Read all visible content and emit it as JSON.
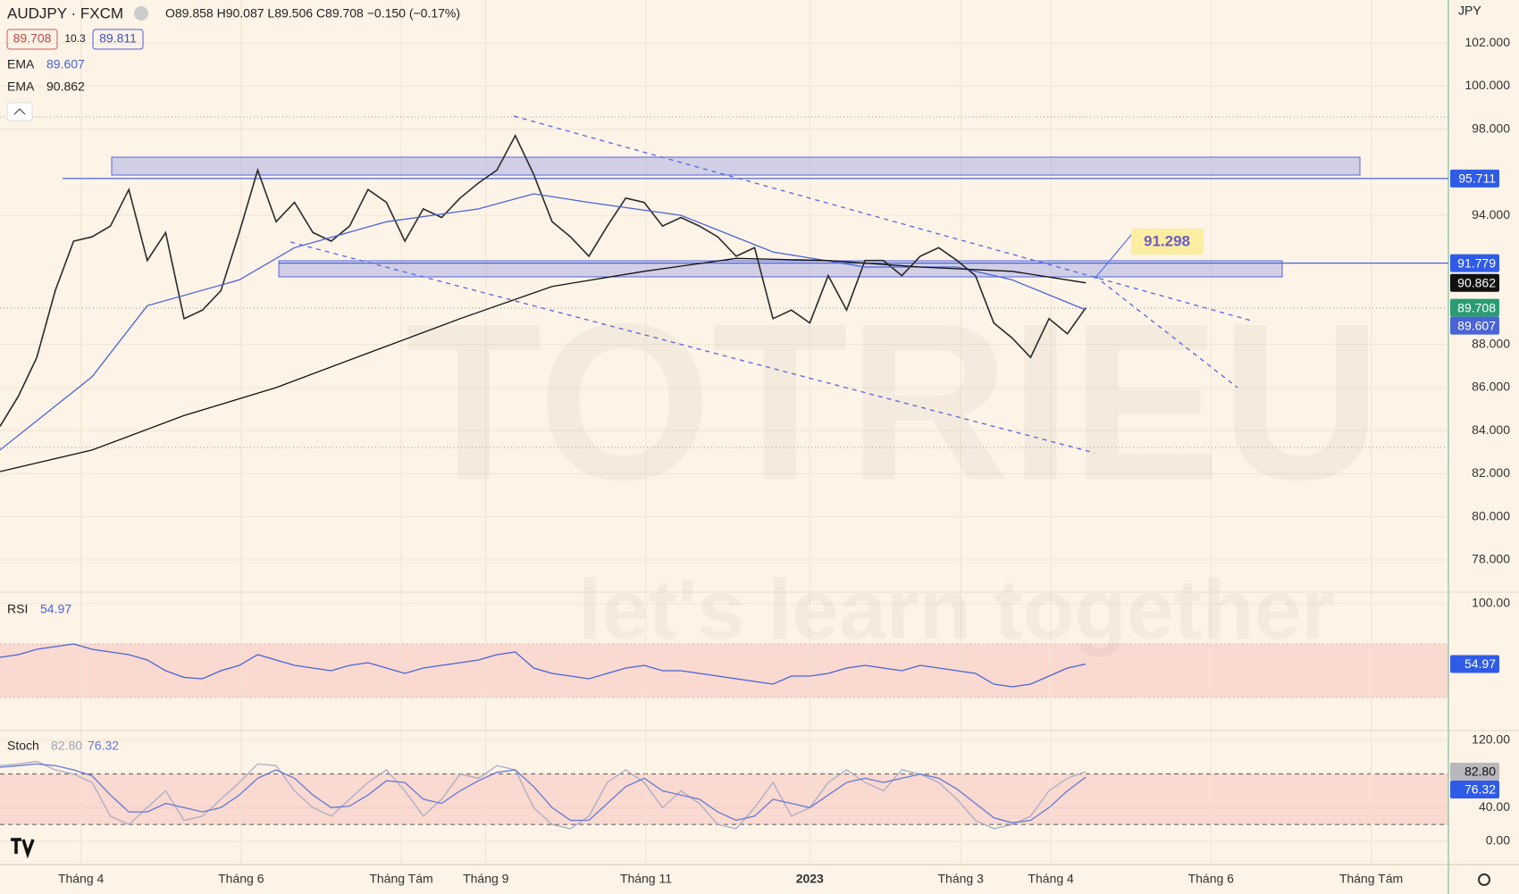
{
  "header": {
    "symbol": "AUDJPY · FXCM",
    "ohlc": "O89.858 H90.087 L89.506 C89.708 −0.150 (−0.17%)",
    "bid": 89.708,
    "spread": 10.3,
    "ask": 89.811,
    "currency": "JPY"
  },
  "watermark": {
    "brand": "TOTRIEU",
    "slogan": "let's learn together"
  },
  "chart_data": [
    {
      "type": "line",
      "xlim": [
        0,
        78.7
      ],
      "ylim": [
        76.5,
        104
      ],
      "yticks": [
        {
          "value": 102,
          "label": "102.000"
        },
        {
          "value": 100,
          "label": "100.000"
        },
        {
          "value": 98,
          "label": "98.000"
        },
        {
          "value": 94,
          "label": "94.000"
        },
        {
          "value": 88,
          "label": "88.000"
        },
        {
          "value": 86,
          "label": "86.000"
        },
        {
          "value": 84,
          "label": "84.000"
        },
        {
          "value": 82,
          "label": "82.000"
        },
        {
          "value": 80,
          "label": "80.000"
        },
        {
          "value": 78,
          "label": "78.000"
        }
      ],
      "grid": true,
      "levels": [
        95.711,
        91.779
      ],
      "annotation": 91.298,
      "series": [
        {
          "color": "#2a2a2a",
          "x": [
            0,
            1,
            2,
            3,
            4,
            5,
            6,
            7,
            8,
            9,
            10,
            11,
            12,
            13,
            14,
            15,
            16,
            17,
            18,
            19,
            20,
            21,
            22,
            23,
            24,
            25,
            26,
            27,
            28,
            29,
            30,
            31,
            32,
            33,
            34,
            35,
            36,
            37,
            38,
            39,
            40,
            41,
            42,
            43,
            44,
            45,
            46,
            47,
            48,
            49,
            50,
            51,
            52,
            53,
            54,
            55,
            56,
            57,
            58,
            59
          ],
          "values": [
            84.2,
            85.6,
            87.4,
            90.5,
            92.8,
            93.0,
            93.5,
            95.2,
            91.9,
            93.2,
            89.2,
            89.6,
            90.5,
            93.2,
            96.1,
            93.7,
            94.6,
            93.2,
            92.8,
            93.5,
            95.2,
            94.6,
            92.8,
            94.3,
            93.9,
            94.8,
            95.5,
            96.1,
            97.7,
            95.9,
            93.7,
            93.0,
            92.1,
            93.5,
            94.8,
            94.6,
            93.5,
            93.9,
            93.5,
            93.0,
            92.1,
            92.5,
            89.2,
            89.6,
            89.0,
            91.2,
            89.6,
            91.9,
            91.9,
            91.2,
            92.1,
            92.5,
            91.9,
            91.2,
            89.0,
            88.3,
            87.4,
            89.2,
            88.5,
            89.708
          ]
        },
        {
          "name": "EMA",
          "color": "#4a63d6",
          "x": [
            0,
            5,
            8,
            13,
            16,
            21,
            26,
            29,
            32,
            37,
            42,
            47,
            52,
            55,
            59
          ],
          "values": [
            83.1,
            86.5,
            89.8,
            91.0,
            92.5,
            93.7,
            94.3,
            95.0,
            94.6,
            94.0,
            92.3,
            91.6,
            91.6,
            91.0,
            89.607
          ]
        },
        {
          "name": "EMA",
          "color": "#111111",
          "x": [
            0,
            5,
            10,
            15,
            20,
            25,
            30,
            35,
            40,
            45,
            50,
            55,
            59
          ],
          "values": [
            82.1,
            83.1,
            84.7,
            86.0,
            87.6,
            89.2,
            90.7,
            91.4,
            92.0,
            91.9,
            91.6,
            91.4,
            90.862
          ]
        }
      ]
    },
    {
      "type": "line",
      "title": "RSI",
      "xlim": [
        0,
        78.7
      ],
      "ylim": [
        5.3,
        108.7
      ],
      "yticks": [
        {
          "value": 100,
          "label": "100.00"
        }
      ],
      "band": [
        30,
        70
      ],
      "series": [
        {
          "color": "#4a63d6",
          "x": [
            0,
            1,
            2,
            3,
            4,
            5,
            6,
            7,
            8,
            9,
            10,
            11,
            12,
            13,
            14,
            15,
            16,
            17,
            18,
            19,
            20,
            21,
            22,
            23,
            24,
            25,
            26,
            27,
            28,
            29,
            30,
            31,
            32,
            33,
            34,
            35,
            36,
            37,
            38,
            39,
            40,
            41,
            42,
            43,
            44,
            45,
            46,
            47,
            48,
            49,
            50,
            51,
            52,
            53,
            54,
            55,
            56,
            57,
            58,
            59
          ],
          "values": [
            60,
            62,
            66,
            68,
            70,
            66,
            64,
            62,
            58,
            50,
            45,
            44,
            50,
            54,
            62,
            58,
            54,
            52,
            50,
            54,
            56,
            52,
            48,
            52,
            54,
            56,
            58,
            62,
            64,
            52,
            48,
            46,
            44,
            48,
            52,
            54,
            50,
            50,
            48,
            46,
            44,
            42,
            40,
            46,
            46,
            48,
            52,
            54,
            52,
            50,
            54,
            52,
            50,
            48,
            40,
            38,
            40,
            46,
            52,
            54.97
          ]
        }
      ]
    },
    {
      "type": "line",
      "title": "Stoch",
      "xlim": [
        0,
        78.7
      ],
      "ylim": [
        -27.6,
        131.7
      ],
      "yticks": [
        {
          "value": 120,
          "label": "120.00"
        },
        {
          "value": 40,
          "label": "40.00"
        },
        {
          "value": 0,
          "label": "0.00"
        }
      ],
      "band": [
        20,
        80
      ],
      "last_values": [
        {
          "value": 82.8,
          "label": "82.80"
        },
        {
          "value": 76.32,
          "label": "76.32"
        }
      ],
      "xticks": [
        {
          "value": 4.4,
          "label": "Tháng 4"
        },
        {
          "value": 13.1,
          "label": "Tháng 6"
        },
        {
          "value": 21.8,
          "label": "Tháng Tám"
        },
        {
          "value": 26.4,
          "label": "Tháng 9"
        },
        {
          "value": 35.1,
          "label": "Tháng 11"
        },
        {
          "value": 44.0,
          "label": "2023"
        },
        {
          "value": 52.2,
          "label": "Tháng 3"
        },
        {
          "value": 57.1,
          "label": "Tháng 4"
        },
        {
          "value": 65.8,
          "label": "Tháng 6"
        },
        {
          "value": 74.5,
          "label": "Tháng Tám"
        }
      ],
      "series": [
        {
          "color": "#a9adc4",
          "x": [
            0,
            1,
            2,
            3,
            4,
            5,
            6,
            7,
            8,
            9,
            10,
            11,
            12,
            13,
            14,
            15,
            16,
            17,
            18,
            19,
            20,
            21,
            22,
            23,
            24,
            25,
            26,
            27,
            28,
            29,
            30,
            31,
            32,
            33,
            34,
            35,
            36,
            37,
            38,
            39,
            40,
            41,
            42,
            43,
            44,
            45,
            46,
            47,
            48,
            49,
            50,
            51,
            52,
            53,
            54,
            55,
            56,
            57,
            58,
            59
          ],
          "values": [
            90,
            92,
            95,
            85,
            80,
            70,
            30,
            20,
            40,
            60,
            25,
            30,
            50,
            70,
            92,
            90,
            60,
            40,
            30,
            50,
            70,
            85,
            60,
            30,
            50,
            80,
            75,
            90,
            85,
            40,
            20,
            15,
            30,
            70,
            85,
            70,
            40,
            60,
            45,
            20,
            15,
            40,
            70,
            30,
            40,
            70,
            85,
            70,
            60,
            85,
            80,
            70,
            50,
            25,
            15,
            20,
            30,
            60,
            75,
            82.8
          ]
        },
        {
          "color": "#6678d4",
          "x": [
            0,
            1,
            2,
            3,
            4,
            5,
            6,
            7,
            8,
            9,
            10,
            11,
            12,
            13,
            14,
            15,
            16,
            17,
            18,
            19,
            20,
            21,
            22,
            23,
            24,
            25,
            26,
            27,
            28,
            29,
            30,
            31,
            32,
            33,
            34,
            35,
            36,
            37,
            38,
            39,
            40,
            41,
            42,
            43,
            44,
            45,
            46,
            47,
            48,
            49,
            50,
            51,
            52,
            53,
            54,
            55,
            56,
            57,
            58,
            59
          ],
          "values": [
            88,
            90,
            92,
            90,
            85,
            78,
            55,
            35,
            35,
            45,
            40,
            35,
            40,
            55,
            75,
            85,
            75,
            55,
            40,
            42,
            55,
            72,
            70,
            50,
            45,
            60,
            72,
            82,
            85,
            65,
            40,
            25,
            25,
            45,
            65,
            75,
            60,
            55,
            50,
            35,
            25,
            30,
            50,
            45,
            40,
            55,
            70,
            75,
            70,
            75,
            80,
            75,
            62,
            45,
            28,
            22,
            25,
            40,
            60,
            76.32
          ]
        }
      ]
    }
  ]
}
